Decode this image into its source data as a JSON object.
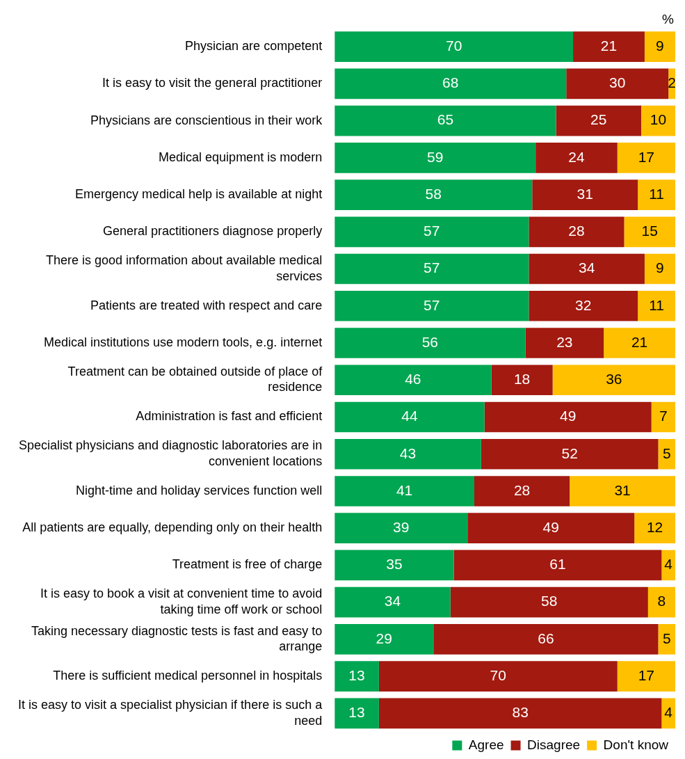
{
  "chart_data": {
    "type": "bar",
    "orientation": "horizontal",
    "stacked": true,
    "data_labels": true,
    "legend": "bottom",
    "tick_labels": "y",
    "grid": false,
    "xlim": [
      0,
      100
    ],
    "annotations": [
      "%"
    ],
    "categories": [
      "Physician are competent",
      "It is easy to visit the general practitioner",
      "Physicians are conscientious in their work",
      "Medical equipment is modern",
      "Emergency medical help is available at night",
      "General practitioners diagnose properly",
      "There is good information about available medical services",
      "Patients are treated with respect and care",
      "Medical institutions use modern tools, e.g. internet",
      "Treatment can be obtained outside of place of residence",
      "Administration is fast and efficient",
      "Specialist physicians and diagnostic laboratories are in convenient locations",
      "Night-time and holiday services function well",
      "All patients are equally, depending only on their health",
      "Treatment is free of charge",
      "It is easy to book a visit at convenient time to avoid taking time off work or school",
      "Taking necessary diagnostic tests is fast and easy to arrange",
      "There is sufficient medical personnel in hospitals",
      "It is easy to visit a specialist physician if there is such a need"
    ],
    "series": [
      {
        "name": "Agree",
        "color": "#00a651",
        "values": [
          70,
          68,
          65,
          59,
          58,
          57,
          57,
          57,
          56,
          46,
          44,
          43,
          41,
          39,
          35,
          34,
          29,
          13,
          13
        ]
      },
      {
        "name": "Disagree",
        "color": "#a21a10",
        "values": [
          21,
          30,
          25,
          24,
          31,
          28,
          34,
          32,
          23,
          18,
          49,
          52,
          28,
          49,
          61,
          58,
          66,
          70,
          83
        ]
      },
      {
        "name": "Don't know",
        "color": "#ffc000",
        "values": [
          9,
          2,
          10,
          17,
          11,
          15,
          9,
          11,
          21,
          36,
          7,
          5,
          31,
          12,
          4,
          8,
          5,
          17,
          4
        ]
      }
    ]
  }
}
